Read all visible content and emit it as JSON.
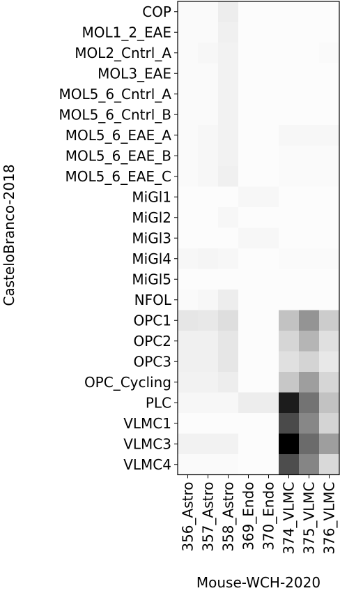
{
  "chart_data": {
    "type": "heatmap",
    "xlabel": "Mouse-WCH-2020",
    "ylabel": "CasteloBranco-2018",
    "colormap": "greys",
    "grid": false,
    "x_categories": [
      "356_Astro",
      "357_Astro",
      "358_Astro",
      "369_Endo",
      "370_Endo",
      "374_VLMC",
      "375_VLMC",
      "376_VLMC"
    ],
    "y_categories": [
      "COP",
      "MOL1_2_EAE",
      "MOL2_Cntrl_A",
      "MOL3_EAE",
      "MOL5_6_Cntrl_A",
      "MOL5_6_Cntrl_B",
      "MOL5_6_EAE_A",
      "MOL5_6_EAE_B",
      "MOL5_6_EAE_C",
      "MiGl1",
      "MiGl2",
      "MiGl3",
      "MiGl4",
      "MiGl5",
      "NFOL",
      "OPC1",
      "OPC2",
      "OPC3",
      "OPC_Cycling",
      "PLC",
      "VLMC1",
      "VLMC3",
      "VLMC4"
    ],
    "values": [
      [
        0.02,
        0.02,
        0.07,
        0.01,
        0.01,
        0.01,
        0.01,
        0.01
      ],
      [
        0.02,
        0.02,
        0.06,
        0.01,
        0.01,
        0.01,
        0.01,
        0.01
      ],
      [
        0.02,
        0.03,
        0.05,
        0.01,
        0.01,
        0.01,
        0.01,
        0.02
      ],
      [
        0.02,
        0.02,
        0.05,
        0.01,
        0.01,
        0.01,
        0.01,
        0.01
      ],
      [
        0.02,
        0.02,
        0.05,
        0.01,
        0.01,
        0.01,
        0.01,
        0.01
      ],
      [
        0.02,
        0.02,
        0.05,
        0.01,
        0.01,
        0.01,
        0.01,
        0.01
      ],
      [
        0.02,
        0.03,
        0.05,
        0.01,
        0.01,
        0.03,
        0.03,
        0.03
      ],
      [
        0.02,
        0.03,
        0.05,
        0.01,
        0.01,
        0.02,
        0.02,
        0.02
      ],
      [
        0.02,
        0.03,
        0.06,
        0.01,
        0.01,
        0.02,
        0.02,
        0.02
      ],
      [
        0.01,
        0.01,
        0.01,
        0.03,
        0.03,
        0.01,
        0.01,
        0.01
      ],
      [
        0.01,
        0.01,
        0.03,
        0.01,
        0.01,
        0.01,
        0.01,
        0.01
      ],
      [
        0.01,
        0.01,
        0.01,
        0.03,
        0.03,
        0.01,
        0.01,
        0.01
      ],
      [
        0.03,
        0.04,
        0.03,
        0.01,
        0.01,
        0.02,
        0.02,
        0.02
      ],
      [
        0.01,
        0.01,
        0.01,
        0.01,
        0.01,
        0.01,
        0.01,
        0.01
      ],
      [
        0.02,
        0.03,
        0.07,
        0.01,
        0.01,
        0.01,
        0.01,
        0.01
      ],
      [
        0.1,
        0.09,
        0.13,
        0.01,
        0.01,
        0.24,
        0.42,
        0.2
      ],
      [
        0.06,
        0.06,
        0.1,
        0.01,
        0.01,
        0.16,
        0.29,
        0.12
      ],
      [
        0.06,
        0.06,
        0.1,
        0.01,
        0.01,
        0.12,
        0.17,
        0.09
      ],
      [
        0.05,
        0.05,
        0.07,
        0.01,
        0.01,
        0.22,
        0.38,
        0.16
      ],
      [
        0.03,
        0.03,
        0.03,
        0.07,
        0.07,
        0.89,
        0.55,
        0.24
      ],
      [
        0.01,
        0.01,
        0.01,
        0.01,
        0.01,
        0.71,
        0.47,
        0.17
      ],
      [
        0.05,
        0.05,
        0.05,
        0.01,
        0.01,
        1.0,
        0.58,
        0.38
      ],
      [
        0.02,
        0.02,
        0.02,
        0.01,
        0.01,
        0.7,
        0.48,
        0.15
      ]
    ]
  }
}
